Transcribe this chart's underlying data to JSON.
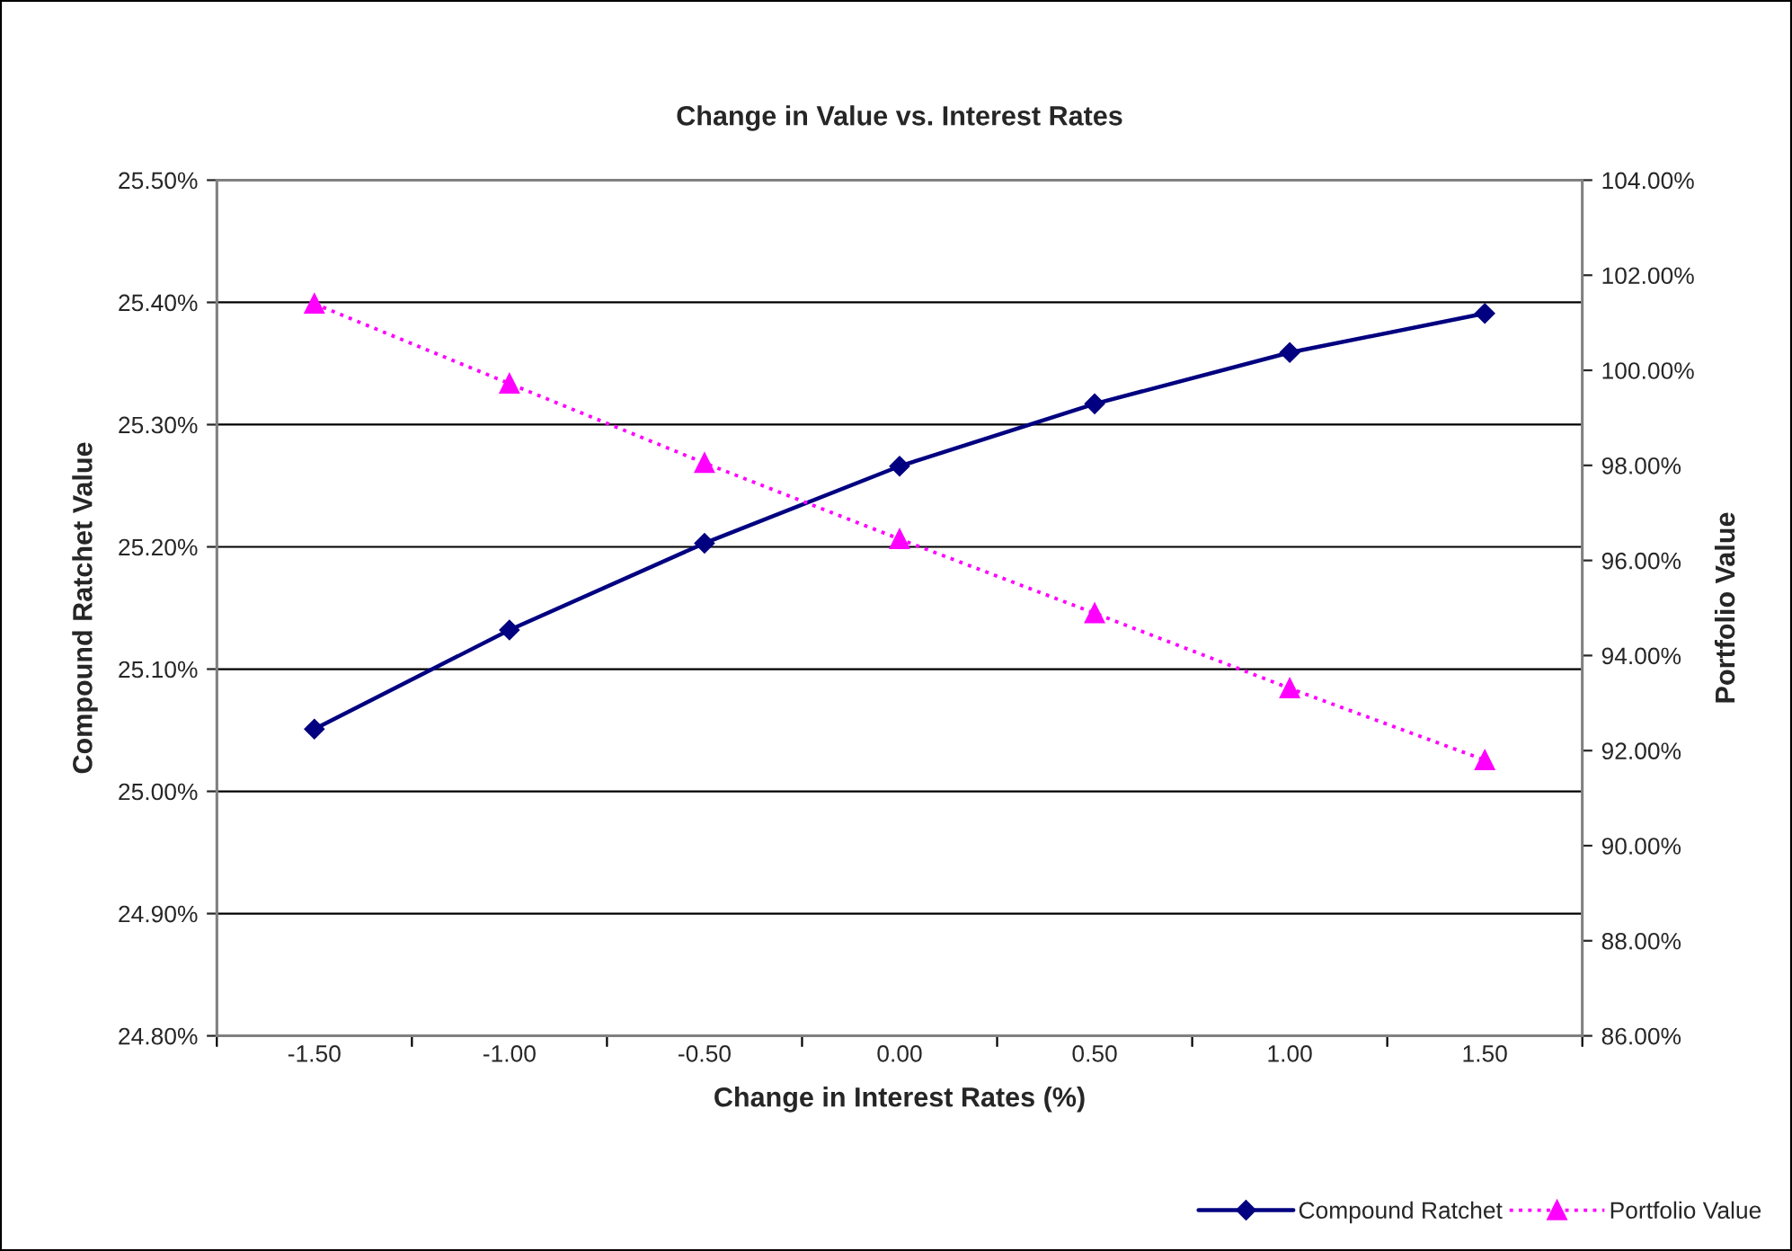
{
  "chart_data": {
    "type": "line",
    "title": "Change in Value vs. Interest Rates",
    "xlabel": "Change in Interest Rates (%)",
    "ylabel": "Compound Ratchet Value",
    "y2label": "Portfolio Value",
    "categories": [
      "-1.50",
      "-1.00",
      "-0.50",
      "0.00",
      "0.50",
      "1.00",
      "1.50"
    ],
    "series": [
      {
        "name": "Compound Ratchet",
        "color": "#000080",
        "marker": "diamond",
        "line_style": "solid",
        "values": [
          25.051,
          25.132,
          25.203,
          25.266,
          25.317,
          25.359,
          25.391
        ]
      },
      {
        "name": "Portfolio Value",
        "color": "#ff00ff",
        "marker": "triangle",
        "line_style": "dotted",
        "axis": "y2",
        "values": [
          101.4,
          99.72,
          98.05,
          96.45,
          94.89,
          93.31,
          91.8
        ]
      }
    ],
    "ylim": [
      24.8,
      25.5
    ],
    "yticks": [
      {
        "value": 24.8,
        "label": "24.80%"
      },
      {
        "value": 24.9,
        "label": "24.90%"
      },
      {
        "value": 25.0,
        "label": "25.00%"
      },
      {
        "value": 25.1,
        "label": "25.10%"
      },
      {
        "value": 25.2,
        "label": "25.20%"
      },
      {
        "value": 25.3,
        "label": "25.30%"
      },
      {
        "value": 25.4,
        "label": "25.40%"
      },
      {
        "value": 25.5,
        "label": "25.50%"
      }
    ],
    "y2lim": [
      86,
      104
    ],
    "y2ticks": [
      {
        "value": 86,
        "label": "86.00%"
      },
      {
        "value": 88,
        "label": "88.00%"
      },
      {
        "value": 90,
        "label": "90.00%"
      },
      {
        "value": 92,
        "label": "92.00%"
      },
      {
        "value": 94,
        "label": "94.00%"
      },
      {
        "value": 96,
        "label": "96.00%"
      },
      {
        "value": 98,
        "label": "98.00%"
      },
      {
        "value": 100,
        "label": "100.00%"
      },
      {
        "value": 102,
        "label": "102.00%"
      },
      {
        "value": 104,
        "label": "104.00%"
      }
    ],
    "grid": "y",
    "legend": "bottom right"
  }
}
